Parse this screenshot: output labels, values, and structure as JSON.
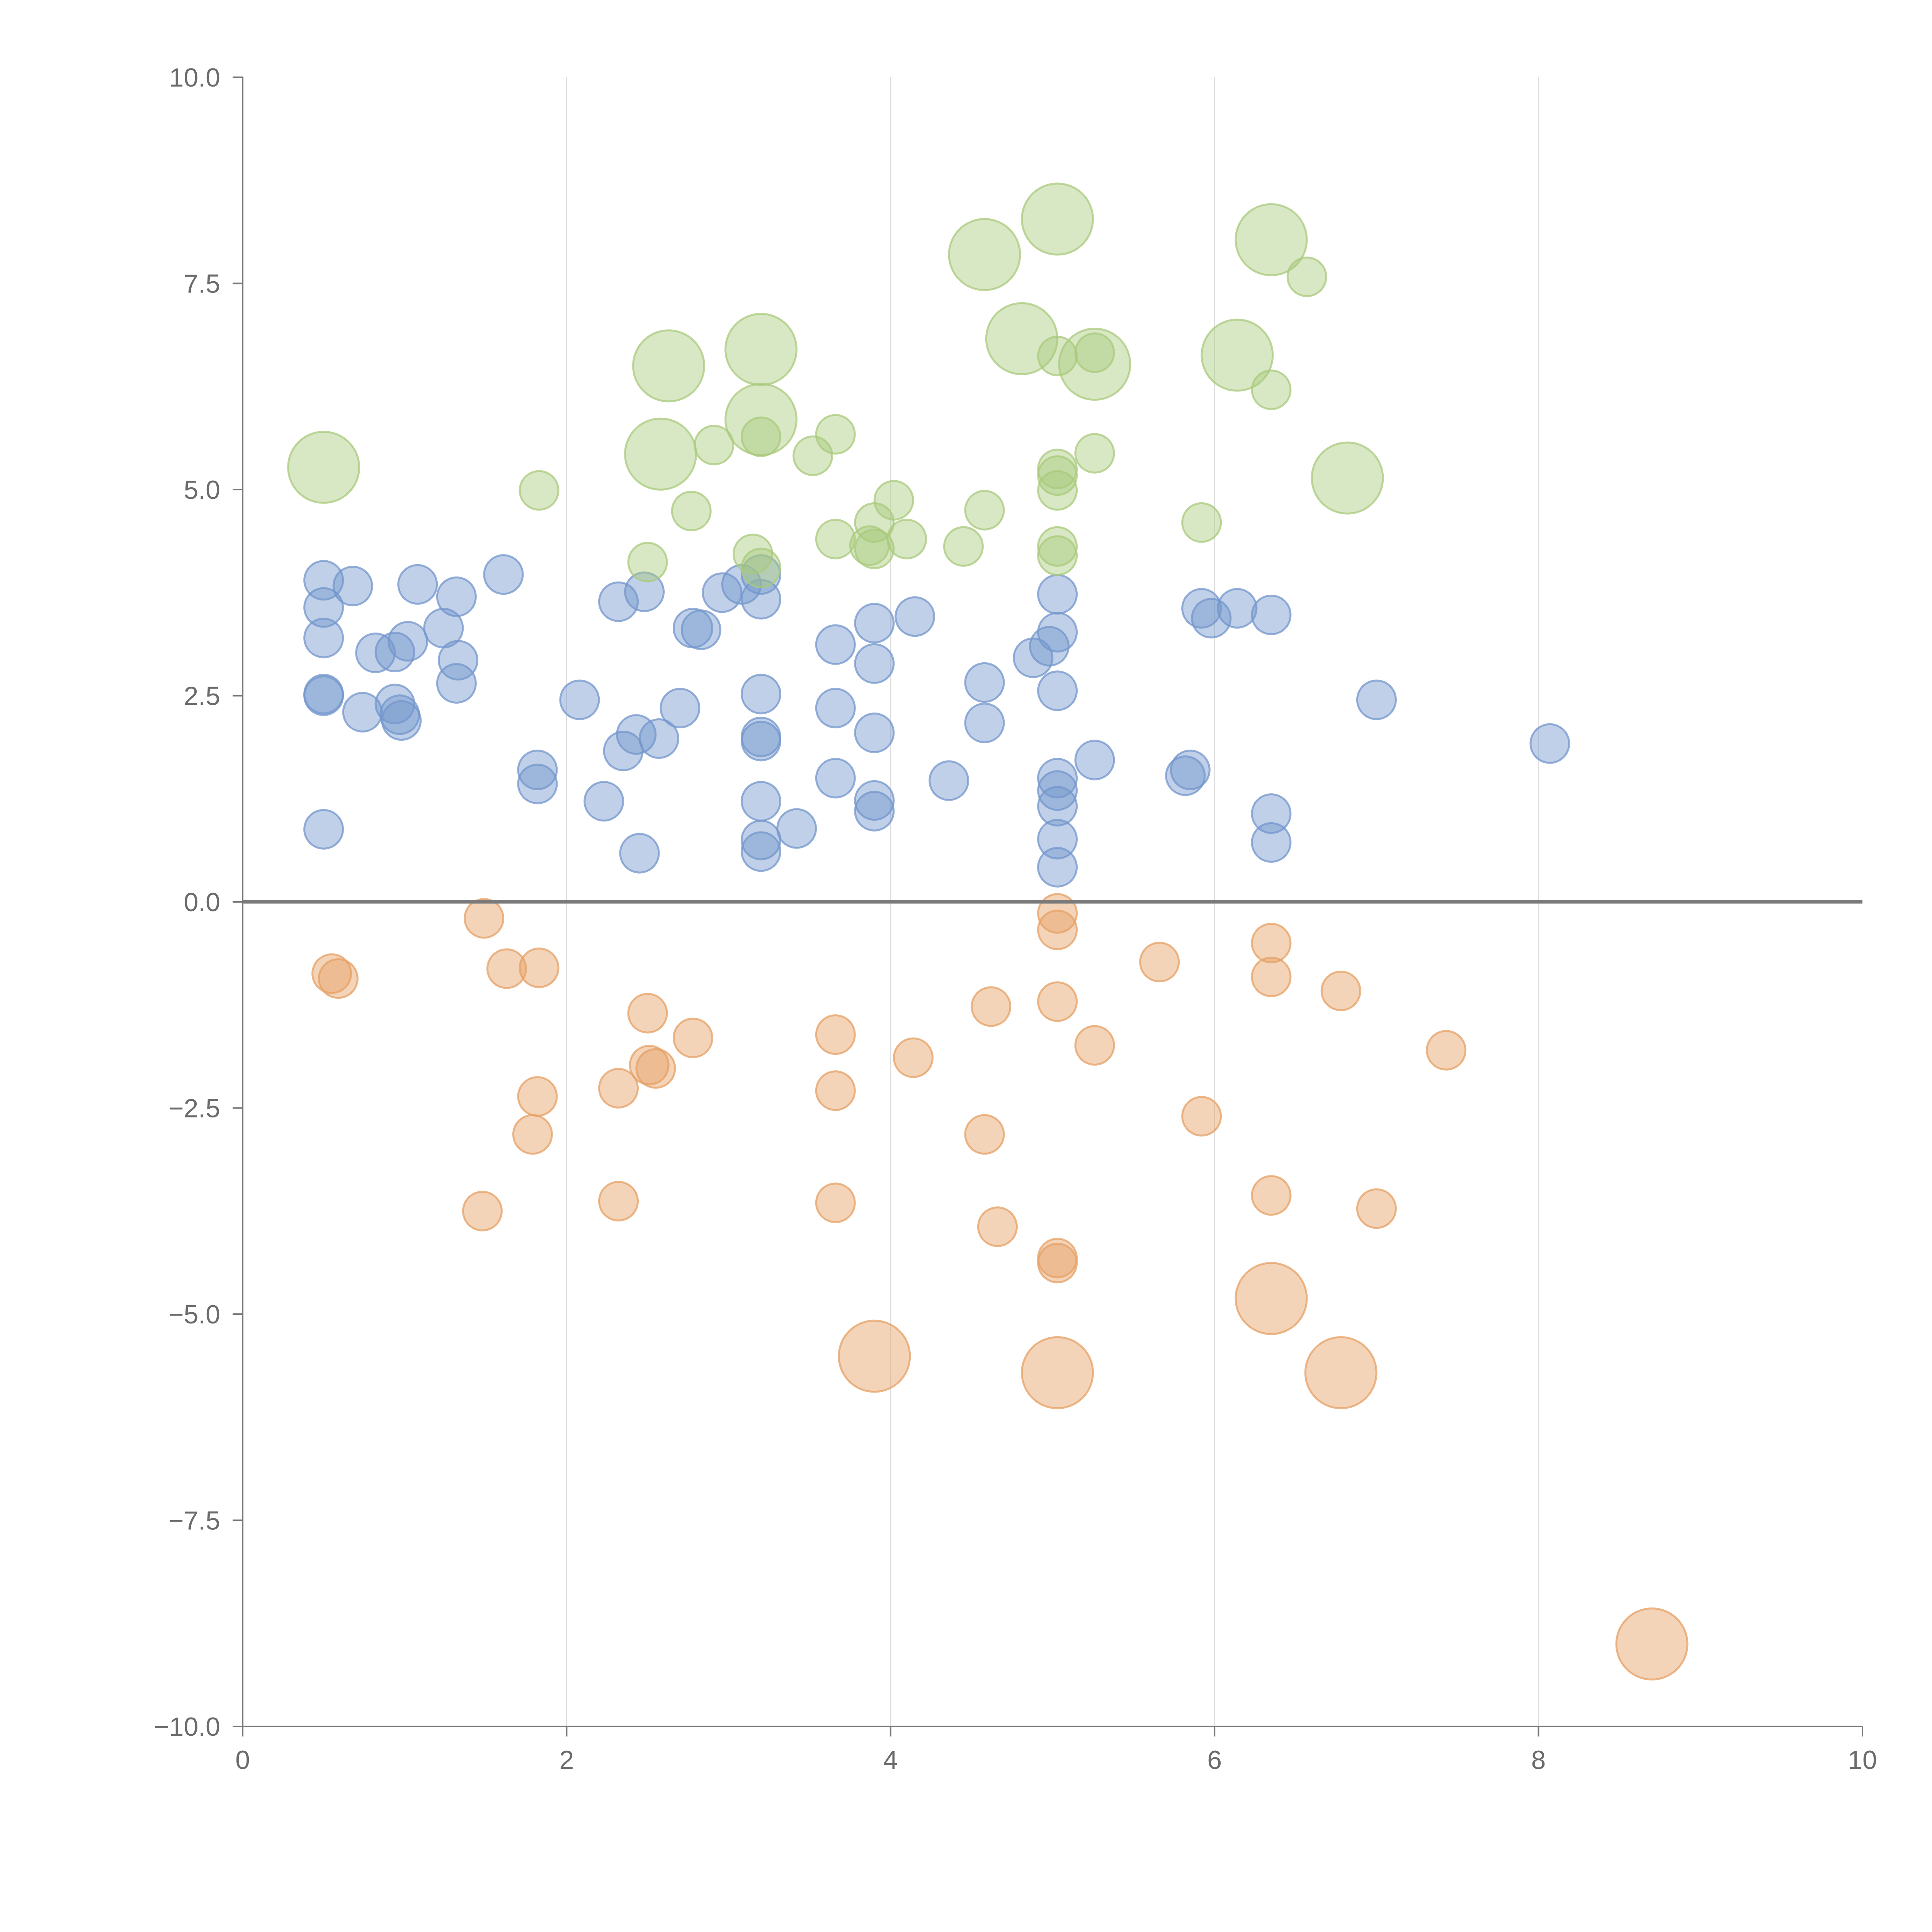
{
  "chart_data": {
    "type": "scatter",
    "subtype": "bubble",
    "title": "",
    "xlabel": "",
    "ylabel": "",
    "xlim": [
      0,
      10
    ],
    "ylim": [
      -10,
      10
    ],
    "grid": "vertical-only",
    "x_ticks": [
      0,
      2,
      4,
      6,
      8,
      10
    ],
    "x_tick_labels": [
      "0",
      "2",
      "4",
      "6",
      "8",
      "10"
    ],
    "y_ticks": [
      -10,
      -7.5,
      -5,
      -2.5,
      0,
      2.5,
      5,
      7.5,
      10
    ],
    "y_tick_labels": [
      "−10.0",
      "−7.5",
      "−5.0",
      "−2.5",
      "0.0",
      "2.5",
      "5.0",
      "7.5",
      "10.0"
    ],
    "reference_line_y": 0,
    "colors": {
      "blue": "#7396cc",
      "green": "#a9c97c",
      "orange": "#e6a064",
      "grid": "#dddddd",
      "axis": "#777777",
      "zero_line": "#7a7a7a"
    },
    "series": [
      {
        "name": "blue",
        "color": "#7396cc",
        "points": [
          {
            "x": 0.5,
            "y": 3.9,
            "s": 1
          },
          {
            "x": 0.5,
            "y": 3.57,
            "s": 1
          },
          {
            "x": 0.5,
            "y": 3.2,
            "s": 1
          },
          {
            "x": 0.5,
            "y": 2.52,
            "s": 1
          },
          {
            "x": 0.5,
            "y": 2.5,
            "s": 1
          },
          {
            "x": 0.5,
            "y": 0.88,
            "s": 1
          },
          {
            "x": 0.68,
            "y": 3.83,
            "s": 1
          },
          {
            "x": 0.74,
            "y": 2.3,
            "s": 1
          },
          {
            "x": 0.82,
            "y": 3.02,
            "s": 1
          },
          {
            "x": 0.94,
            "y": 3.03,
            "s": 1
          },
          {
            "x": 0.94,
            "y": 2.4,
            "s": 1
          },
          {
            "x": 0.97,
            "y": 2.27,
            "s": 1
          },
          {
            "x": 0.98,
            "y": 2.2,
            "s": 1
          },
          {
            "x": 1.02,
            "y": 3.16,
            "s": 1
          },
          {
            "x": 1.08,
            "y": 3.85,
            "s": 1
          },
          {
            "x": 1.24,
            "y": 3.32,
            "s": 1
          },
          {
            "x": 1.32,
            "y": 3.7,
            "s": 1
          },
          {
            "x": 1.33,
            "y": 2.93,
            "s": 1
          },
          {
            "x": 1.32,
            "y": 2.65,
            "s": 1
          },
          {
            "x": 1.61,
            "y": 3.97,
            "s": 1
          },
          {
            "x": 1.82,
            "y": 1.6,
            "s": 1
          },
          {
            "x": 1.82,
            "y": 1.43,
            "s": 1
          },
          {
            "x": 2.08,
            "y": 2.45,
            "s": 1
          },
          {
            "x": 2.23,
            "y": 1.22,
            "s": 1
          },
          {
            "x": 2.32,
            "y": 3.64,
            "s": 1
          },
          {
            "x": 2.35,
            "y": 1.83,
            "s": 1
          },
          {
            "x": 2.43,
            "y": 2.03,
            "s": 1
          },
          {
            "x": 2.45,
            "y": 0.59,
            "s": 1
          },
          {
            "x": 2.48,
            "y": 3.76,
            "s": 1
          },
          {
            "x": 2.57,
            "y": 1.98,
            "s": 1
          },
          {
            "x": 2.7,
            "y": 2.35,
            "s": 1
          },
          {
            "x": 2.78,
            "y": 3.32,
            "s": 1
          },
          {
            "x": 2.83,
            "y": 3.3,
            "s": 1
          },
          {
            "x": 2.96,
            "y": 3.75,
            "s": 1
          },
          {
            "x": 3.08,
            "y": 3.85,
            "s": 1
          },
          {
            "x": 3.2,
            "y": 3.97,
            "s": 1
          },
          {
            "x": 3.2,
            "y": 3.67,
            "s": 1
          },
          {
            "x": 3.2,
            "y": 2.52,
            "s": 1
          },
          {
            "x": 3.2,
            "y": 2.0,
            "s": 1
          },
          {
            "x": 3.2,
            "y": 1.95,
            "s": 1
          },
          {
            "x": 3.2,
            "y": 1.22,
            "s": 1
          },
          {
            "x": 3.2,
            "y": 0.75,
            "s": 1
          },
          {
            "x": 3.2,
            "y": 0.61,
            "s": 1
          },
          {
            "x": 3.42,
            "y": 0.89,
            "s": 1
          },
          {
            "x": 3.66,
            "y": 3.12,
            "s": 1
          },
          {
            "x": 3.66,
            "y": 2.35,
            "s": 1
          },
          {
            "x": 3.66,
            "y": 1.5,
            "s": 1
          },
          {
            "x": 3.9,
            "y": 3.38,
            "s": 1
          },
          {
            "x": 3.9,
            "y": 2.89,
            "s": 1
          },
          {
            "x": 3.9,
            "y": 2.05,
            "s": 1
          },
          {
            "x": 3.9,
            "y": 1.23,
            "s": 1
          },
          {
            "x": 3.9,
            "y": 1.1,
            "s": 1
          },
          {
            "x": 4.15,
            "y": 3.46,
            "s": 1
          },
          {
            "x": 4.36,
            "y": 1.47,
            "s": 1
          },
          {
            "x": 4.58,
            "y": 2.66,
            "s": 1
          },
          {
            "x": 4.58,
            "y": 2.17,
            "s": 1
          },
          {
            "x": 4.88,
            "y": 2.96,
            "s": 1
          },
          {
            "x": 4.98,
            "y": 3.1,
            "s": 1
          },
          {
            "x": 5.03,
            "y": 3.73,
            "s": 1
          },
          {
            "x": 5.03,
            "y": 3.27,
            "s": 1
          },
          {
            "x": 5.03,
            "y": 2.56,
            "s": 1
          },
          {
            "x": 5.03,
            "y": 1.5,
            "s": 1
          },
          {
            "x": 5.03,
            "y": 1.35,
            "s": 1
          },
          {
            "x": 5.03,
            "y": 1.16,
            "s": 1
          },
          {
            "x": 5.03,
            "y": 0.76,
            "s": 1
          },
          {
            "x": 5.03,
            "y": 0.42,
            "s": 1
          },
          {
            "x": 5.26,
            "y": 1.72,
            "s": 1
          },
          {
            "x": 5.82,
            "y": 1.53,
            "s": 1
          },
          {
            "x": 5.85,
            "y": 1.6,
            "s": 1
          },
          {
            "x": 5.92,
            "y": 3.56,
            "s": 1
          },
          {
            "x": 5.98,
            "y": 3.44,
            "s": 1
          },
          {
            "x": 6.14,
            "y": 3.56,
            "s": 1
          },
          {
            "x": 6.35,
            "y": 3.48,
            "s": 1
          },
          {
            "x": 6.35,
            "y": 1.07,
            "s": 1
          },
          {
            "x": 6.35,
            "y": 0.72,
            "s": 1
          },
          {
            "x": 7.0,
            "y": 2.45,
            "s": 1
          },
          {
            "x": 8.07,
            "y": 1.92,
            "s": 1
          }
        ]
      },
      {
        "name": "green",
        "color": "#a9c97c",
        "points": [
          {
            "x": 0.5,
            "y": 5.27,
            "s": 2
          },
          {
            "x": 1.83,
            "y": 4.99,
            "s": 1
          },
          {
            "x": 2.5,
            "y": 4.12,
            "s": 1
          },
          {
            "x": 2.58,
            "y": 5.43,
            "s": 2
          },
          {
            "x": 2.63,
            "y": 6.5,
            "s": 2
          },
          {
            "x": 2.77,
            "y": 4.74,
            "s": 1
          },
          {
            "x": 2.91,
            "y": 5.54,
            "s": 1
          },
          {
            "x": 3.15,
            "y": 4.22,
            "s": 1
          },
          {
            "x": 3.2,
            "y": 4.05,
            "s": 1
          },
          {
            "x": 3.2,
            "y": 6.7,
            "s": 2
          },
          {
            "x": 3.2,
            "y": 5.85,
            "s": 2
          },
          {
            "x": 3.2,
            "y": 5.64,
            "s": 1
          },
          {
            "x": 3.52,
            "y": 5.41,
            "s": 1
          },
          {
            "x": 3.66,
            "y": 4.4,
            "s": 1
          },
          {
            "x": 3.66,
            "y": 5.67,
            "s": 1
          },
          {
            "x": 3.87,
            "y": 4.32,
            "s": 1
          },
          {
            "x": 3.9,
            "y": 4.28,
            "s": 1
          },
          {
            "x": 3.9,
            "y": 4.6,
            "s": 1
          },
          {
            "x": 4.02,
            "y": 4.87,
            "s": 1
          },
          {
            "x": 4.1,
            "y": 4.4,
            "s": 1
          },
          {
            "x": 4.45,
            "y": 4.31,
            "s": 1
          },
          {
            "x": 4.58,
            "y": 4.75,
            "s": 1
          },
          {
            "x": 4.58,
            "y": 7.85,
            "s": 2
          },
          {
            "x": 4.81,
            "y": 6.83,
            "s": 2
          },
          {
            "x": 5.03,
            "y": 8.28,
            "s": 2
          },
          {
            "x": 5.03,
            "y": 6.62,
            "s": 1
          },
          {
            "x": 5.03,
            "y": 5.25,
            "s": 1
          },
          {
            "x": 5.03,
            "y": 5.17,
            "s": 1
          },
          {
            "x": 5.03,
            "y": 4.99,
            "s": 1
          },
          {
            "x": 5.03,
            "y": 4.31,
            "s": 1
          },
          {
            "x": 5.03,
            "y": 4.2,
            "s": 1
          },
          {
            "x": 5.26,
            "y": 6.66,
            "s": 1
          },
          {
            "x": 5.26,
            "y": 5.44,
            "s": 1
          },
          {
            "x": 5.26,
            "y": 6.52,
            "s": 2
          },
          {
            "x": 5.92,
            "y": 4.6,
            "s": 1
          },
          {
            "x": 6.14,
            "y": 6.63,
            "s": 2
          },
          {
            "x": 6.35,
            "y": 8.03,
            "s": 2
          },
          {
            "x": 6.35,
            "y": 6.21,
            "s": 1
          },
          {
            "x": 6.57,
            "y": 7.58,
            "s": 1
          },
          {
            "x": 6.82,
            "y": 5.14,
            "s": 2
          }
        ]
      },
      {
        "name": "orange",
        "color": "#e6a064",
        "points": [
          {
            "x": 0.55,
            "y": -0.87,
            "s": 1
          },
          {
            "x": 0.59,
            "y": -0.93,
            "s": 1
          },
          {
            "x": 1.48,
            "y": -3.75,
            "s": 1
          },
          {
            "x": 1.49,
            "y": -0.2,
            "s": 1
          },
          {
            "x": 1.63,
            "y": -0.81,
            "s": 1
          },
          {
            "x": 1.79,
            "y": -2.82,
            "s": 1
          },
          {
            "x": 1.82,
            "y": -2.36,
            "s": 1
          },
          {
            "x": 1.83,
            "y": -0.8,
            "s": 1
          },
          {
            "x": 2.32,
            "y": -2.26,
            "s": 1
          },
          {
            "x": 2.32,
            "y": -3.63,
            "s": 1
          },
          {
            "x": 2.5,
            "y": -1.35,
            "s": 1
          },
          {
            "x": 2.51,
            "y": -1.98,
            "s": 1
          },
          {
            "x": 2.55,
            "y": -2.02,
            "s": 1
          },
          {
            "x": 2.78,
            "y": -1.65,
            "s": 1
          },
          {
            "x": 3.66,
            "y": -1.61,
            "s": 1
          },
          {
            "x": 3.66,
            "y": -2.29,
            "s": 1
          },
          {
            "x": 3.66,
            "y": -3.65,
            "s": 1
          },
          {
            "x": 3.9,
            "y": -5.51,
            "s": 2
          },
          {
            "x": 4.14,
            "y": -1.89,
            "s": 1
          },
          {
            "x": 4.58,
            "y": -2.82,
            "s": 1
          },
          {
            "x": 4.62,
            "y": -1.27,
            "s": 1
          },
          {
            "x": 4.66,
            "y": -3.94,
            "s": 1
          },
          {
            "x": 5.03,
            "y": -0.14,
            "s": 1
          },
          {
            "x": 5.03,
            "y": -0.34,
            "s": 1
          },
          {
            "x": 5.03,
            "y": -1.21,
            "s": 1
          },
          {
            "x": 5.03,
            "y": -4.32,
            "s": 1
          },
          {
            "x": 5.03,
            "y": -4.38,
            "s": 1
          },
          {
            "x": 5.03,
            "y": -5.71,
            "s": 2
          },
          {
            "x": 5.26,
            "y": -1.74,
            "s": 1
          },
          {
            "x": 5.66,
            "y": -0.73,
            "s": 1
          },
          {
            "x": 5.92,
            "y": -2.6,
            "s": 1
          },
          {
            "x": 6.35,
            "y": -0.5,
            "s": 1
          },
          {
            "x": 6.35,
            "y": -0.91,
            "s": 1
          },
          {
            "x": 6.35,
            "y": -3.56,
            "s": 1
          },
          {
            "x": 6.35,
            "y": -4.81,
            "s": 2
          },
          {
            "x": 6.78,
            "y": -1.08,
            "s": 1
          },
          {
            "x": 6.78,
            "y": -5.71,
            "s": 2
          },
          {
            "x": 7.0,
            "y": -3.72,
            "s": 1
          },
          {
            "x": 7.43,
            "y": -1.8,
            "s": 1
          },
          {
            "x": 8.7,
            "y": -9.0,
            "s": 2
          }
        ]
      }
    ]
  }
}
